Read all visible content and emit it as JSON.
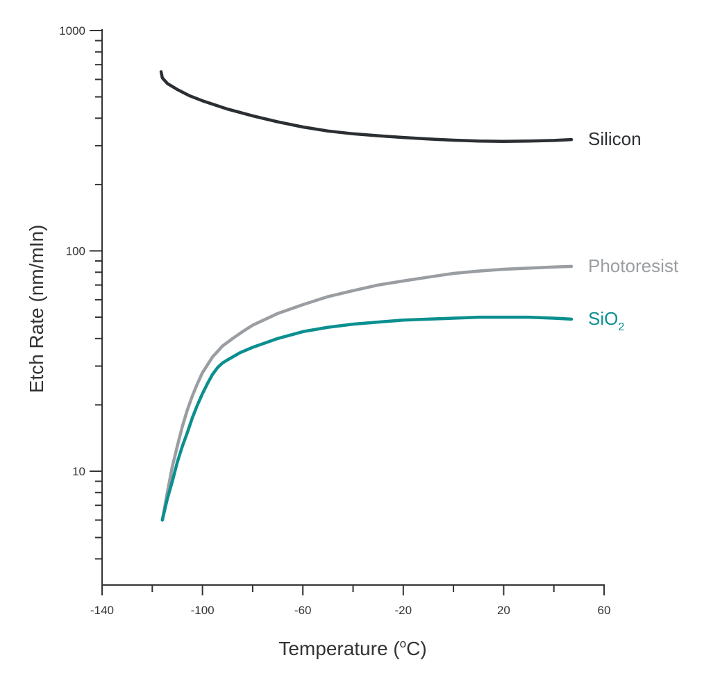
{
  "chart_data": {
    "type": "line",
    "title": "",
    "xlabel": "Temperature (°C)",
    "xlabel_main": "Temperature (",
    "xlabel_deg": "o",
    "xlabel_unit": "C)",
    "ylabel": "Etch Rate (nm/mIn)",
    "yscale": "log",
    "xlim": [
      -140,
      60
    ],
    "ylim": [
      3.7,
      1000
    ],
    "x_ticks": [
      -140,
      -100,
      -60,
      -20,
      20,
      60
    ],
    "x_tick_labels": [
      "-140",
      "-100",
      "-60",
      "-20",
      "20",
      "60"
    ],
    "y_ticks": [
      10,
      100,
      1000
    ],
    "y_tick_labels": [
      "10",
      "100",
      "1000"
    ],
    "grid": false,
    "legend": "inline labels at line ends",
    "series": [
      {
        "name": "Silicon",
        "color": "#2b2f33",
        "x": [
          -116.5,
          -116,
          -114,
          -110,
          -105,
          -100,
          -90,
          -80,
          -70,
          -60,
          -50,
          -40,
          -30,
          -20,
          -10,
          0,
          10,
          20,
          30,
          40,
          47
        ],
        "y": [
          650,
          610,
          575,
          540,
          505,
          480,
          440,
          410,
          385,
          365,
          350,
          340,
          333,
          327,
          322,
          318,
          315,
          314,
          315,
          317,
          320
        ]
      },
      {
        "name": "Photoresist",
        "color": "#9a9ea2",
        "x": [
          -116,
          -114,
          -112,
          -110,
          -108,
          -106,
          -104,
          -102,
          -100,
          -96,
          -92,
          -88,
          -84,
          -80,
          -70,
          -60,
          -50,
          -40,
          -30,
          -20,
          -10,
          0,
          10,
          20,
          30,
          40,
          47
        ],
        "y": [
          6,
          8,
          10.5,
          13,
          16,
          19,
          22,
          25,
          28,
          33,
          37,
          40,
          43,
          46,
          52,
          57,
          62,
          66,
          70,
          73,
          76,
          79,
          81,
          82.5,
          83.5,
          84.5,
          85
        ]
      },
      {
        "name": "SiO2",
        "label_main": "SiO",
        "label_sub": "2",
        "color": "#0b8f8f",
        "x": [
          -116,
          -114,
          -112,
          -110,
          -108,
          -106,
          -104,
          -102,
          -100,
          -98,
          -96,
          -94,
          -92,
          -90,
          -88,
          -85,
          -80,
          -70,
          -60,
          -50,
          -40,
          -30,
          -20,
          -10,
          0,
          10,
          20,
          30,
          40,
          47
        ],
        "y": [
          6,
          7.5,
          9,
          11,
          13,
          15,
          17.5,
          20,
          22.5,
          25,
          27.5,
          29.5,
          31,
          32,
          33,
          34.5,
          36.5,
          40,
          43,
          45,
          46.5,
          47.5,
          48.5,
          49,
          49.5,
          50,
          50,
          50,
          49.5,
          49
        ]
      }
    ]
  }
}
